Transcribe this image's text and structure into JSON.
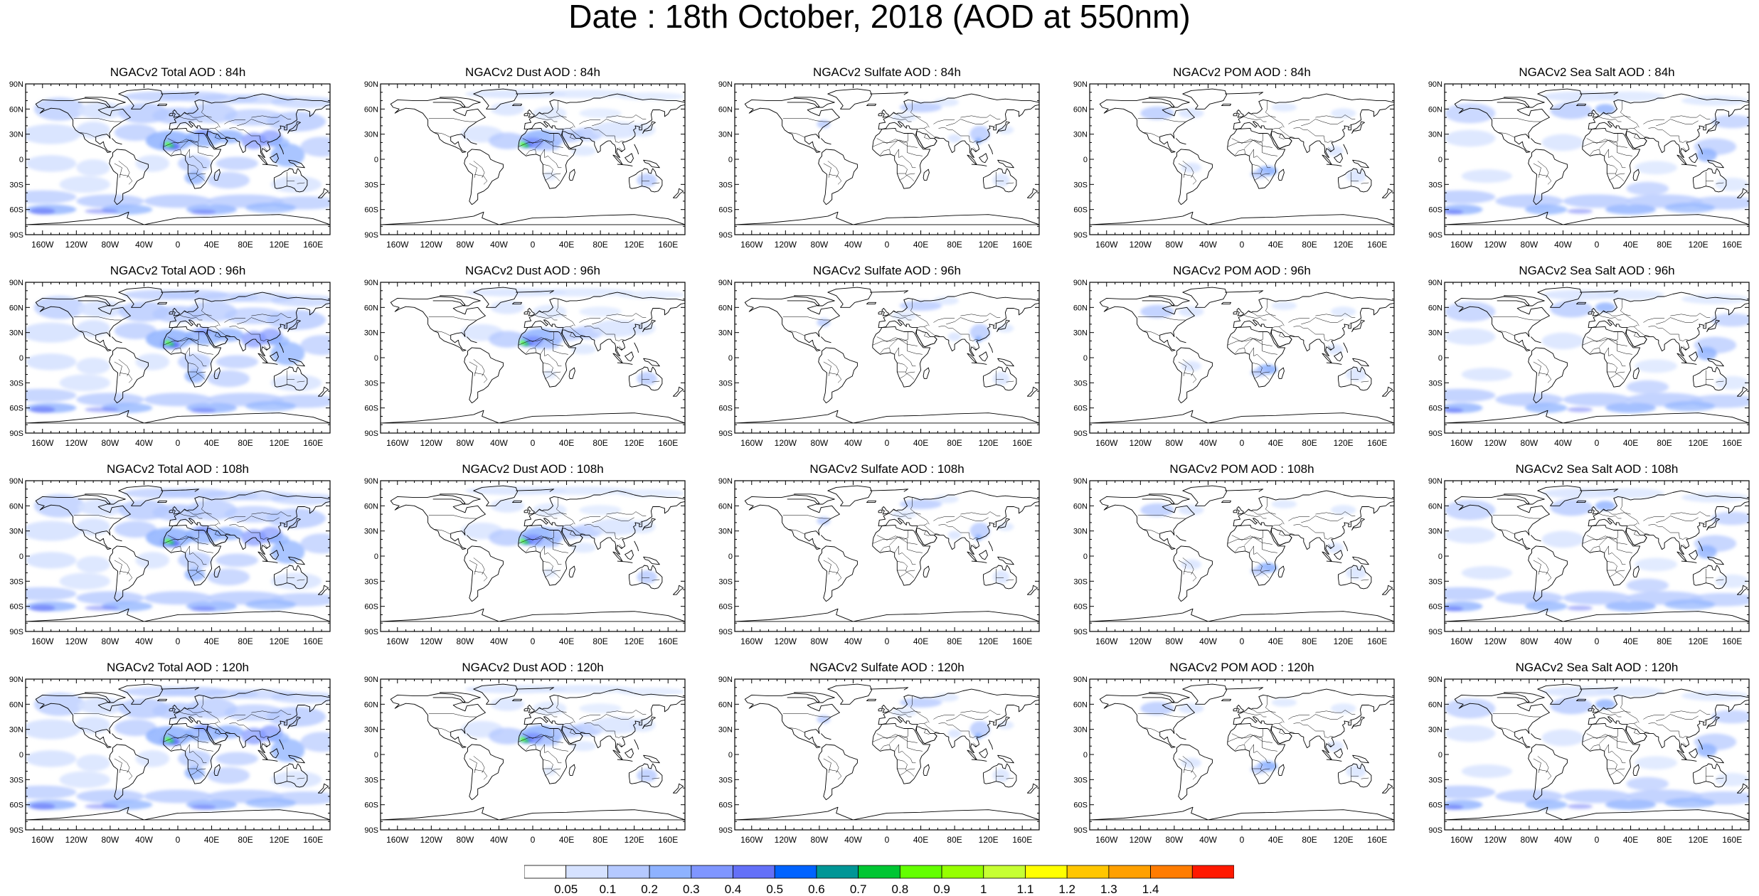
{
  "title": "Date : 18th October, 2018 (AOD at 550nm)",
  "lat_ticks": [
    "90N",
    "60N",
    "30N",
    "0",
    "30S",
    "60S",
    "90S"
  ],
  "lon_ticks": [
    "160W",
    "120W",
    "80W",
    "40W",
    "0",
    "40E",
    "80E",
    "120E",
    "160E"
  ],
  "panels": [
    {
      "title": "NGACv2 Total AOD : 84h",
      "species": "total",
      "lead": "84h"
    },
    {
      "title": "NGACv2 Dust AOD : 84h",
      "species": "dust",
      "lead": "84h"
    },
    {
      "title": "NGACv2 Sulfate AOD : 84h",
      "species": "sulfate",
      "lead": "84h"
    },
    {
      "title": "NGACv2 POM AOD : 84h",
      "species": "pom",
      "lead": "84h"
    },
    {
      "title": "NGACv2 Sea Salt AOD : 84h",
      "species": "seasalt",
      "lead": "84h"
    },
    {
      "title": "NGACv2 Total AOD : 96h",
      "species": "total",
      "lead": "96h"
    },
    {
      "title": "NGACv2 Dust AOD : 96h",
      "species": "dust",
      "lead": "96h"
    },
    {
      "title": "NGACv2 Sulfate AOD : 96h",
      "species": "sulfate",
      "lead": "96h"
    },
    {
      "title": "NGACv2 POM AOD : 96h",
      "species": "pom",
      "lead": "96h"
    },
    {
      "title": "NGACv2 Sea Salt AOD : 96h",
      "species": "seasalt",
      "lead": "96h"
    },
    {
      "title": "NGACv2 Total AOD : 108h",
      "species": "total",
      "lead": "108h"
    },
    {
      "title": "NGACv2 Dust AOD : 108h",
      "species": "dust",
      "lead": "108h"
    },
    {
      "title": "NGACv2 Sulfate AOD : 108h",
      "species": "sulfate",
      "lead": "108h"
    },
    {
      "title": "NGACv2 POM AOD : 108h",
      "species": "pom",
      "lead": "108h"
    },
    {
      "title": "NGACv2 Sea Salt AOD : 108h",
      "species": "seasalt",
      "lead": "108h"
    },
    {
      "title": "NGACv2 Total AOD : 120h",
      "species": "total",
      "lead": "120h"
    },
    {
      "title": "NGACv2 Dust AOD : 120h",
      "species": "dust",
      "lead": "120h"
    },
    {
      "title": "NGACv2 Sulfate AOD : 120h",
      "species": "sulfate",
      "lead": "120h"
    },
    {
      "title": "NGACv2 POM AOD : 120h",
      "species": "pom",
      "lead": "120h"
    },
    {
      "title": "NGACv2 Sea Salt  AOD : 120h",
      "species": "seasalt",
      "lead": "120h"
    }
  ],
  "colorbar": {
    "labels": [
      "0.05",
      "0.1",
      "0.2",
      "0.3",
      "0.4",
      "0.5",
      "0.6",
      "0.7",
      "0.8",
      "0.9",
      "1",
      "1.1",
      "1.2",
      "1.3",
      "1.4"
    ],
    "colors": [
      "#ffffff",
      "#d6e2ff",
      "#b5c9ff",
      "#8eb2ff",
      "#7f96ff",
      "#6370f8",
      "#0063ff",
      "#009696",
      "#00c633",
      "#63ff00",
      "#96ff00",
      "#c6ff33",
      "#ffff00",
      "#ffc600",
      "#ffa000",
      "#ff7c00",
      "#ff1900"
    ]
  }
}
